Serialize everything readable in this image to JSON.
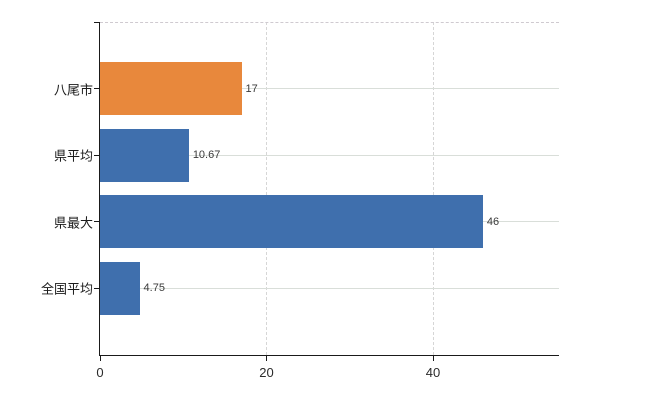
{
  "chart_data": {
    "type": "bar",
    "orientation": "horizontal",
    "title": "",
    "xlabel": "",
    "ylabel": "",
    "categories": [
      "八尾市",
      "県平均",
      "県最大",
      "全国平均"
    ],
    "values": [
      17,
      10.67,
      46,
      4.75
    ],
    "value_labels": [
      "17",
      "10.67",
      "46",
      "4.75"
    ],
    "bar_colors": [
      "#e8883c",
      "#3f6fad",
      "#3f6fad",
      "#3f6fad"
    ],
    "x_ticks": [
      0,
      20,
      40
    ],
    "x_tick_labels": [
      "0",
      "20",
      "40"
    ],
    "xlim": [
      0,
      55.14
    ],
    "grid": true,
    "legend": false,
    "plot_border_top": "dashed"
  },
  "colors": {
    "highlight_bar": "#e8883c",
    "default_bar": "#3f6fad",
    "grid_horizontal": "#d9ded9",
    "grid_vertical": "#d6d6d6",
    "axis": "#1a1a1a",
    "label_text": "#1a1a1a",
    "value_text": "#3a3a3a",
    "background": "#ffffff"
  }
}
